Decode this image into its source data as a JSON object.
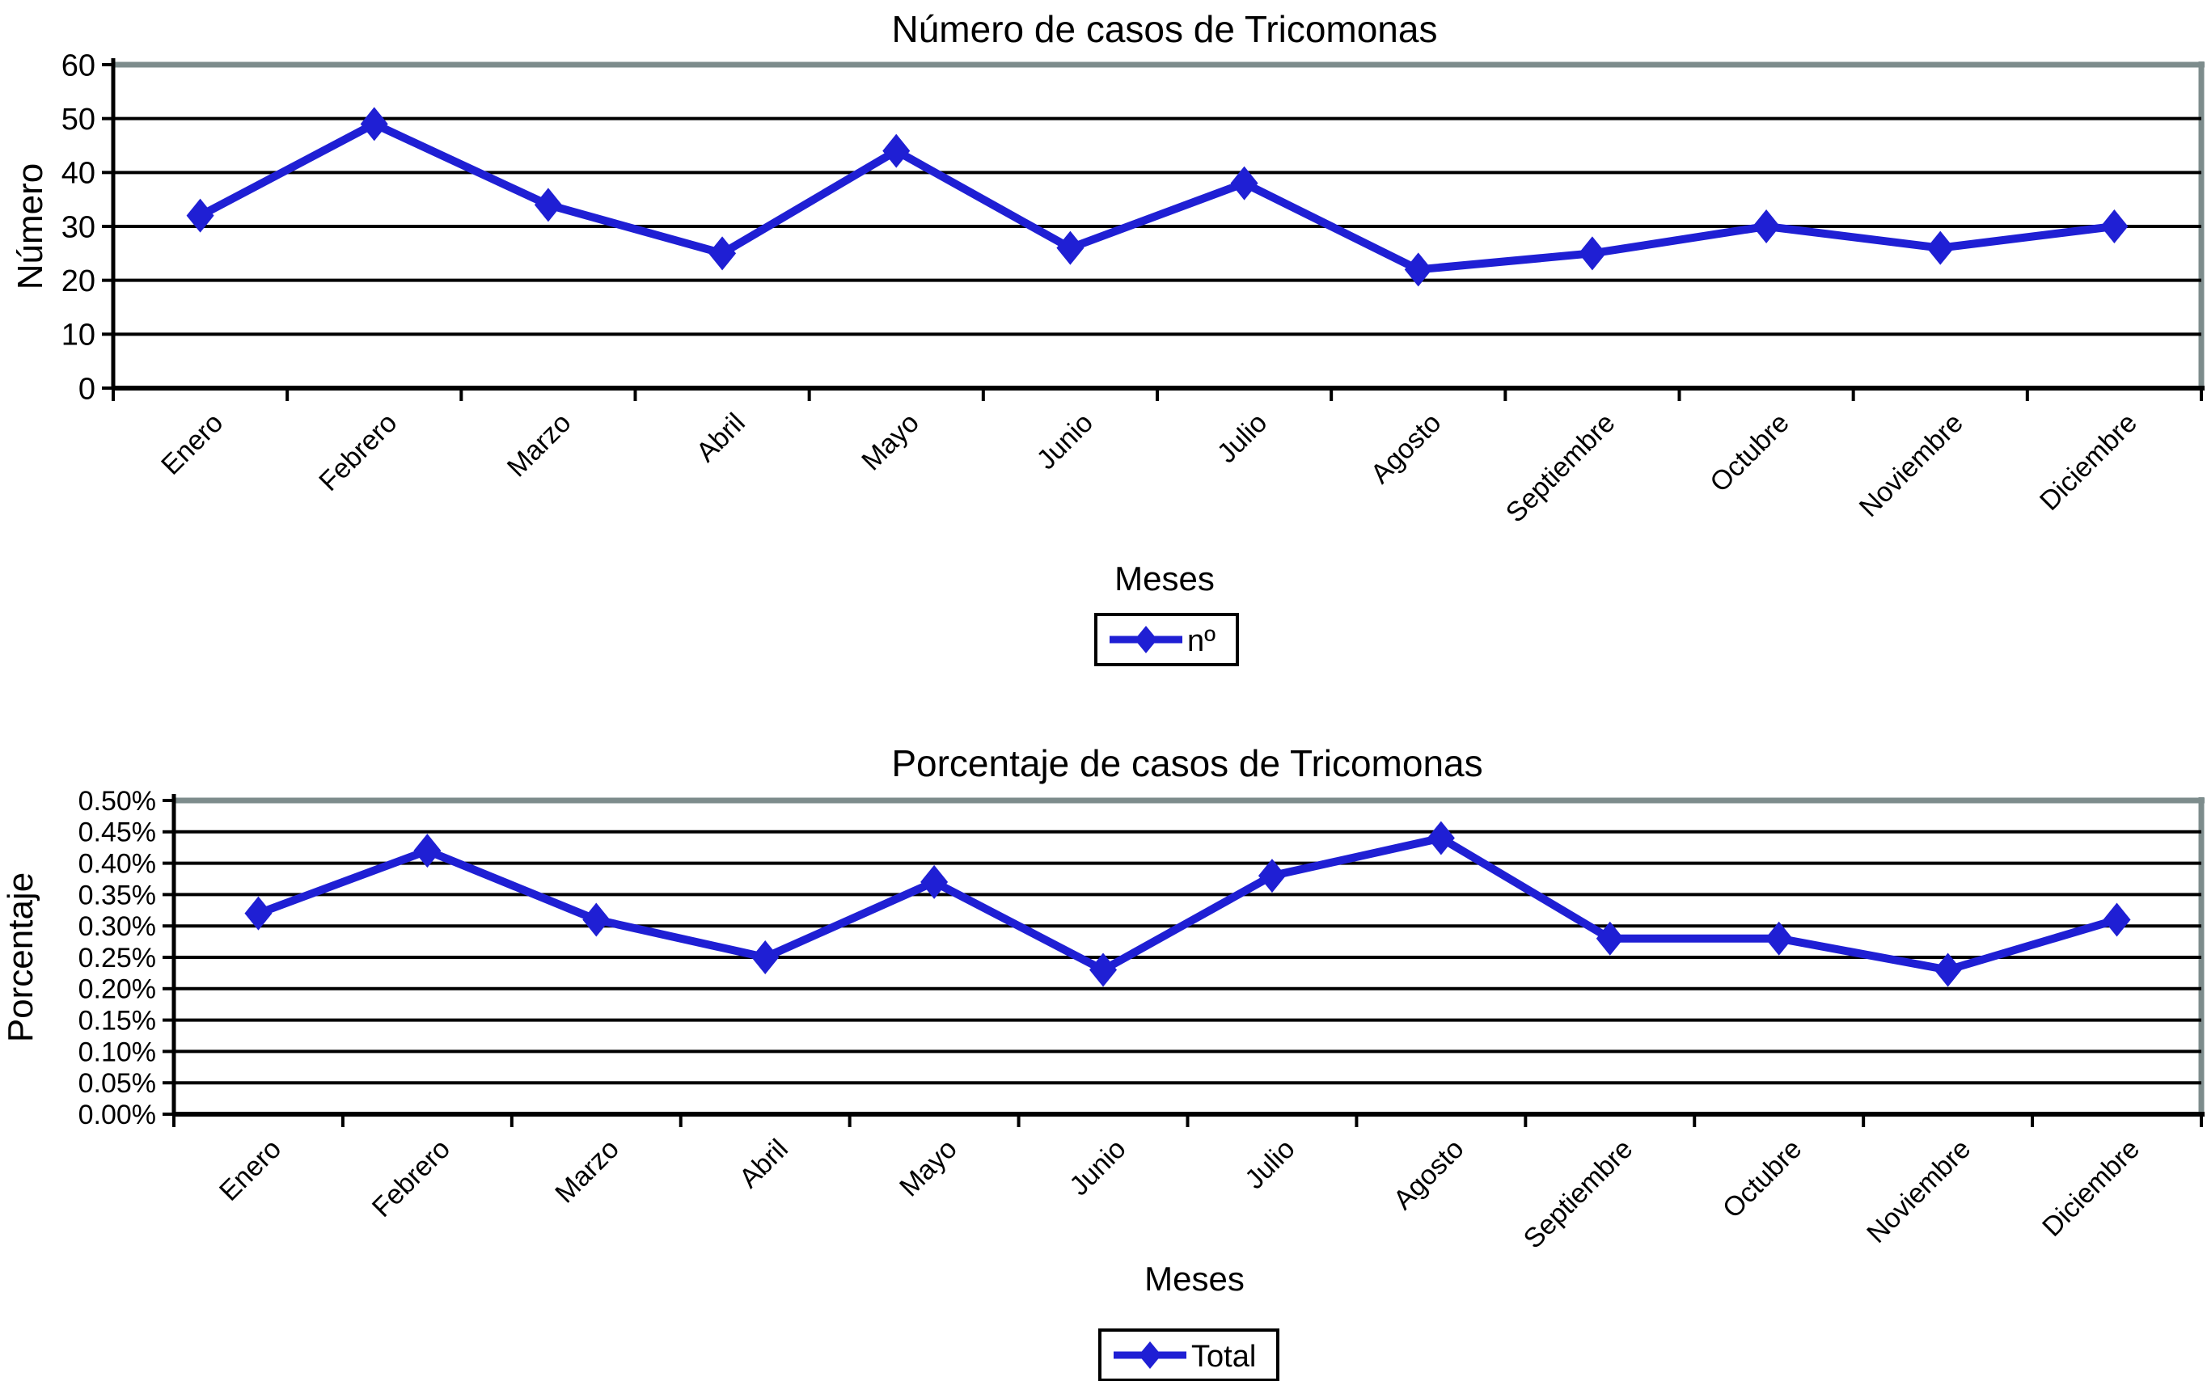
{
  "page": {
    "background": "#ffffff"
  },
  "colors": {
    "line": "#1f1fd4",
    "grid": "#000000",
    "axis": "#000000",
    "frame": "#7d8c8c",
    "text": "#000000",
    "legend_background": "#ffffff"
  },
  "chart_data": [
    {
      "type": "line",
      "title": "Número de casos de Tricomonas",
      "xlabel": "Meses",
      "ylabel": "Número",
      "categories": [
        "Enero",
        "Febrero",
        "Marzo",
        "Abril",
        "Mayo",
        "Junio",
        "Julio",
        "Agosto",
        "Septiembre",
        "Octubre",
        "Noviembre",
        "Diciembre"
      ],
      "series": [
        {
          "name": "nº",
          "values": [
            32,
            49,
            34,
            25,
            44,
            26,
            38,
            22,
            25,
            30,
            26,
            30
          ]
        }
      ],
      "ylim": [
        0,
        60
      ],
      "ytick_step": 10,
      "ytick_format": "integer",
      "ytick_labels": [
        "0",
        "10",
        "20",
        "30",
        "40",
        "50",
        "60"
      ],
      "grid": true,
      "legend_position": "bottom-center",
      "legend_labels": [
        "nº"
      ],
      "marker": "diamond"
    },
    {
      "type": "line",
      "title": "Porcentaje de casos de Tricomonas",
      "xlabel": "Meses",
      "ylabel": "Porcentaje",
      "categories": [
        "Enero",
        "Febrero",
        "Marzo",
        "Abril",
        "Mayo",
        "Junio",
        "Julio",
        "Agosto",
        "Septiembre",
        "Octubre",
        "Noviembre",
        "Diciembre"
      ],
      "series": [
        {
          "name": "Total",
          "values": [
            0.32,
            0.42,
            0.31,
            0.25,
            0.37,
            0.23,
            0.38,
            0.44,
            0.28,
            0.28,
            0.23,
            0.31
          ]
        }
      ],
      "ylim": [
        0,
        0.5
      ],
      "ytick_step": 0.05,
      "ytick_format": "percent-2dp",
      "ytick_labels": [
        "0.00%",
        "0.05%",
        "0.10%",
        "0.15%",
        "0.20%",
        "0.25%",
        "0.30%",
        "0.35%",
        "0.40%",
        "0.45%",
        "0.50%"
      ],
      "grid": true,
      "legend_position": "bottom-center",
      "legend_labels": [
        "Total"
      ],
      "marker": "diamond"
    }
  ]
}
